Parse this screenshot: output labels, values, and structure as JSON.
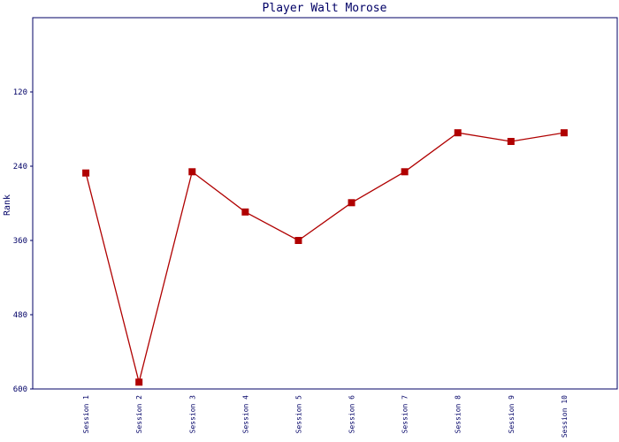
{
  "chart_data": {
    "type": "line",
    "title": "Player Walt Morose",
    "y_label": "Rank",
    "categories": [
      "Session 1",
      "Session 2",
      "Session 3",
      "Session 4",
      "Session 5",
      "Session 6",
      "Session 7",
      "Session 8",
      "Session 9",
      "Session 10"
    ],
    "series": [
      {
        "name": "Rank",
        "color": "#b00000",
        "values": [
          251,
          589,
          249,
          314,
          360,
          299,
          249,
          186,
          200,
          186
        ]
      }
    ],
    "ylim": [
      600,
      0
    ],
    "yticks": [
      120,
      240,
      360,
      480,
      600
    ],
    "grid": false
  }
}
